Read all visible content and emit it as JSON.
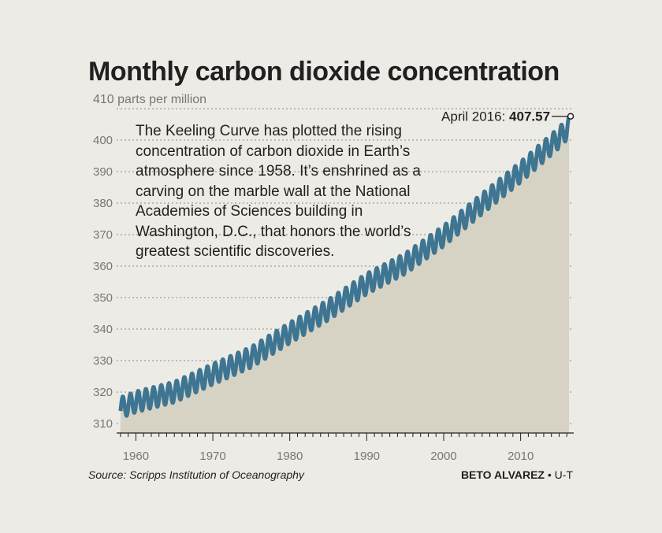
{
  "chart_data": {
    "type": "line",
    "title": "Monthly carbon dioxide concentration",
    "ylabel": "parts per million",
    "ylim": [
      307,
      412
    ],
    "xlim": [
      1957.5,
      2016.9
    ],
    "yticks": [
      310,
      320,
      330,
      340,
      350,
      360,
      370,
      380,
      390,
      400,
      410
    ],
    "ytick_labels": [
      "310",
      "320",
      "330",
      "340",
      "350",
      "360",
      "370",
      "380",
      "390",
      "400",
      "410 parts per million"
    ],
    "xticks": [
      1960,
      1970,
      1980,
      1990,
      2000,
      2010
    ],
    "series": [
      {
        "trend_x": [
          1958,
          1960,
          1965,
          1970,
          1975,
          1980,
          1985,
          1990,
          1995,
          2000,
          2005,
          2010,
          2015,
          2016.3
        ],
        "trend_y": [
          315,
          316.9,
          320,
          325.7,
          331.1,
          338.8,
          346.1,
          354.4,
          360.8,
          369.6,
          379.8,
          389.9,
          400.8,
          404.2
        ],
        "seasonal_amplitude_ppm": 3.3,
        "color": "#3d7592"
      }
    ],
    "annotation": {
      "label": "April 2016:",
      "value": "407.57",
      "x": 2016.29,
      "y": 407.57
    },
    "area_color": "#d7d3c4",
    "grid": "horizontal dashed"
  },
  "text": {
    "title": "Monthly carbon dioxide concentration",
    "blurb": "The Keeling Curve has plotted the rising concentration of carbon dioxide in Earth’s atmosphere since 1958. It’s enshrined as a carving on the marble wall at the National Academies of Sciences building in Washington, D.C., that honors the world’s greatest scientific discoveries.",
    "source": "Source: Scripps Institution of Oceanography",
    "credit_name": "BETO ALVAREZ",
    "credit_org": "• U-T"
  }
}
